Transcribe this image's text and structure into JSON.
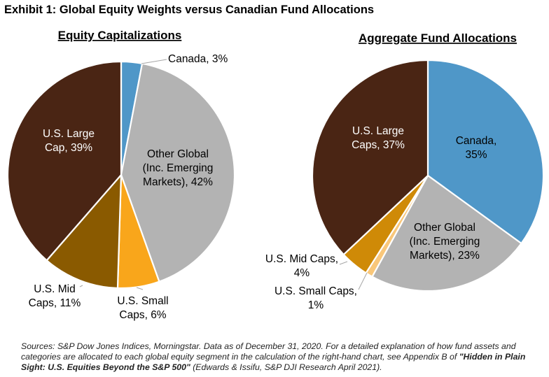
{
  "exhibit_title": "Exhibit 1: Global Equity Weights versus Canadian Fund Allocations",
  "chart_data": [
    {
      "type": "pie",
      "title": "Equity Capitalizations",
      "slices": [
        {
          "name": "Canada",
          "value": 3,
          "label_lines": [
            "Canada, 3%"
          ],
          "color": "#4f97c8",
          "text_color": "#000000"
        },
        {
          "name": "Other Global (Inc. Emerging Markets)",
          "value": 42,
          "label_lines": [
            "Other Global",
            "(Inc. Emerging",
            "Markets), 42%"
          ],
          "color": "#b3b3b3",
          "text_color": "#000000"
        },
        {
          "name": "U.S. Small Cap",
          "value": 6,
          "label_lines": [
            "U.S. Small",
            "Caps, 6%"
          ],
          "color": "#f9a61b",
          "text_color": "#000000"
        },
        {
          "name": "U.S. Mid Cap",
          "value": 11,
          "label_lines": [
            "U.S. Mid",
            "Caps, 11%"
          ],
          "color": "#8a5a00",
          "text_color": "#000000"
        },
        {
          "name": "U.S. Large Cap",
          "value": 39,
          "label_lines": [
            "U.S. Large",
            "Cap, 39%"
          ],
          "color": "#4a2514",
          "text_color": "#ffffff"
        }
      ]
    },
    {
      "type": "pie",
      "title": "Aggregate Fund Allocations",
      "slices": [
        {
          "name": "Canada",
          "value": 35,
          "label_lines": [
            "Canada,",
            "35%"
          ],
          "color": "#4f97c8",
          "text_color": "#000000"
        },
        {
          "name": "Other Global (Inc. Emerging Markets)",
          "value": 23,
          "label_lines": [
            "Other Global",
            "(Inc. Emerging",
            "Markets), 23%"
          ],
          "color": "#b3b3b3",
          "text_color": "#000000"
        },
        {
          "name": "U.S. Small Caps",
          "value": 1,
          "label_lines": [
            "U.S. Small Caps,",
            "1%"
          ],
          "color": "#f9c77a",
          "text_color": "#000000"
        },
        {
          "name": "U.S. Mid Caps",
          "value": 4,
          "label_lines": [
            "U.S. Mid Caps,",
            "4%"
          ],
          "color": "#cf8a07",
          "text_color": "#000000"
        },
        {
          "name": "U.S. Large Caps",
          "value": 37,
          "label_lines": [
            "U.S. Large",
            "Caps, 37%"
          ],
          "color": "#4a2514",
          "text_color": "#ffffff"
        }
      ]
    }
  ],
  "sources": {
    "line1": "Sources: S&P Dow Jones Indices, Morningstar.  Data as of December 31, 2020.  For a detailed explanation of how fund assets and",
    "line2": "categories are allocated to each global equity segment in the calculation of the right-hand chart, see Appendix B of ",
    "link_title_a": "\"Hidden in Plain",
    "link_title_b": "Sight: U.S. Equities Beyond the S&P 500\"",
    "citation": " (Edwards & Issifu, S&P DJI Research April 2021)."
  }
}
